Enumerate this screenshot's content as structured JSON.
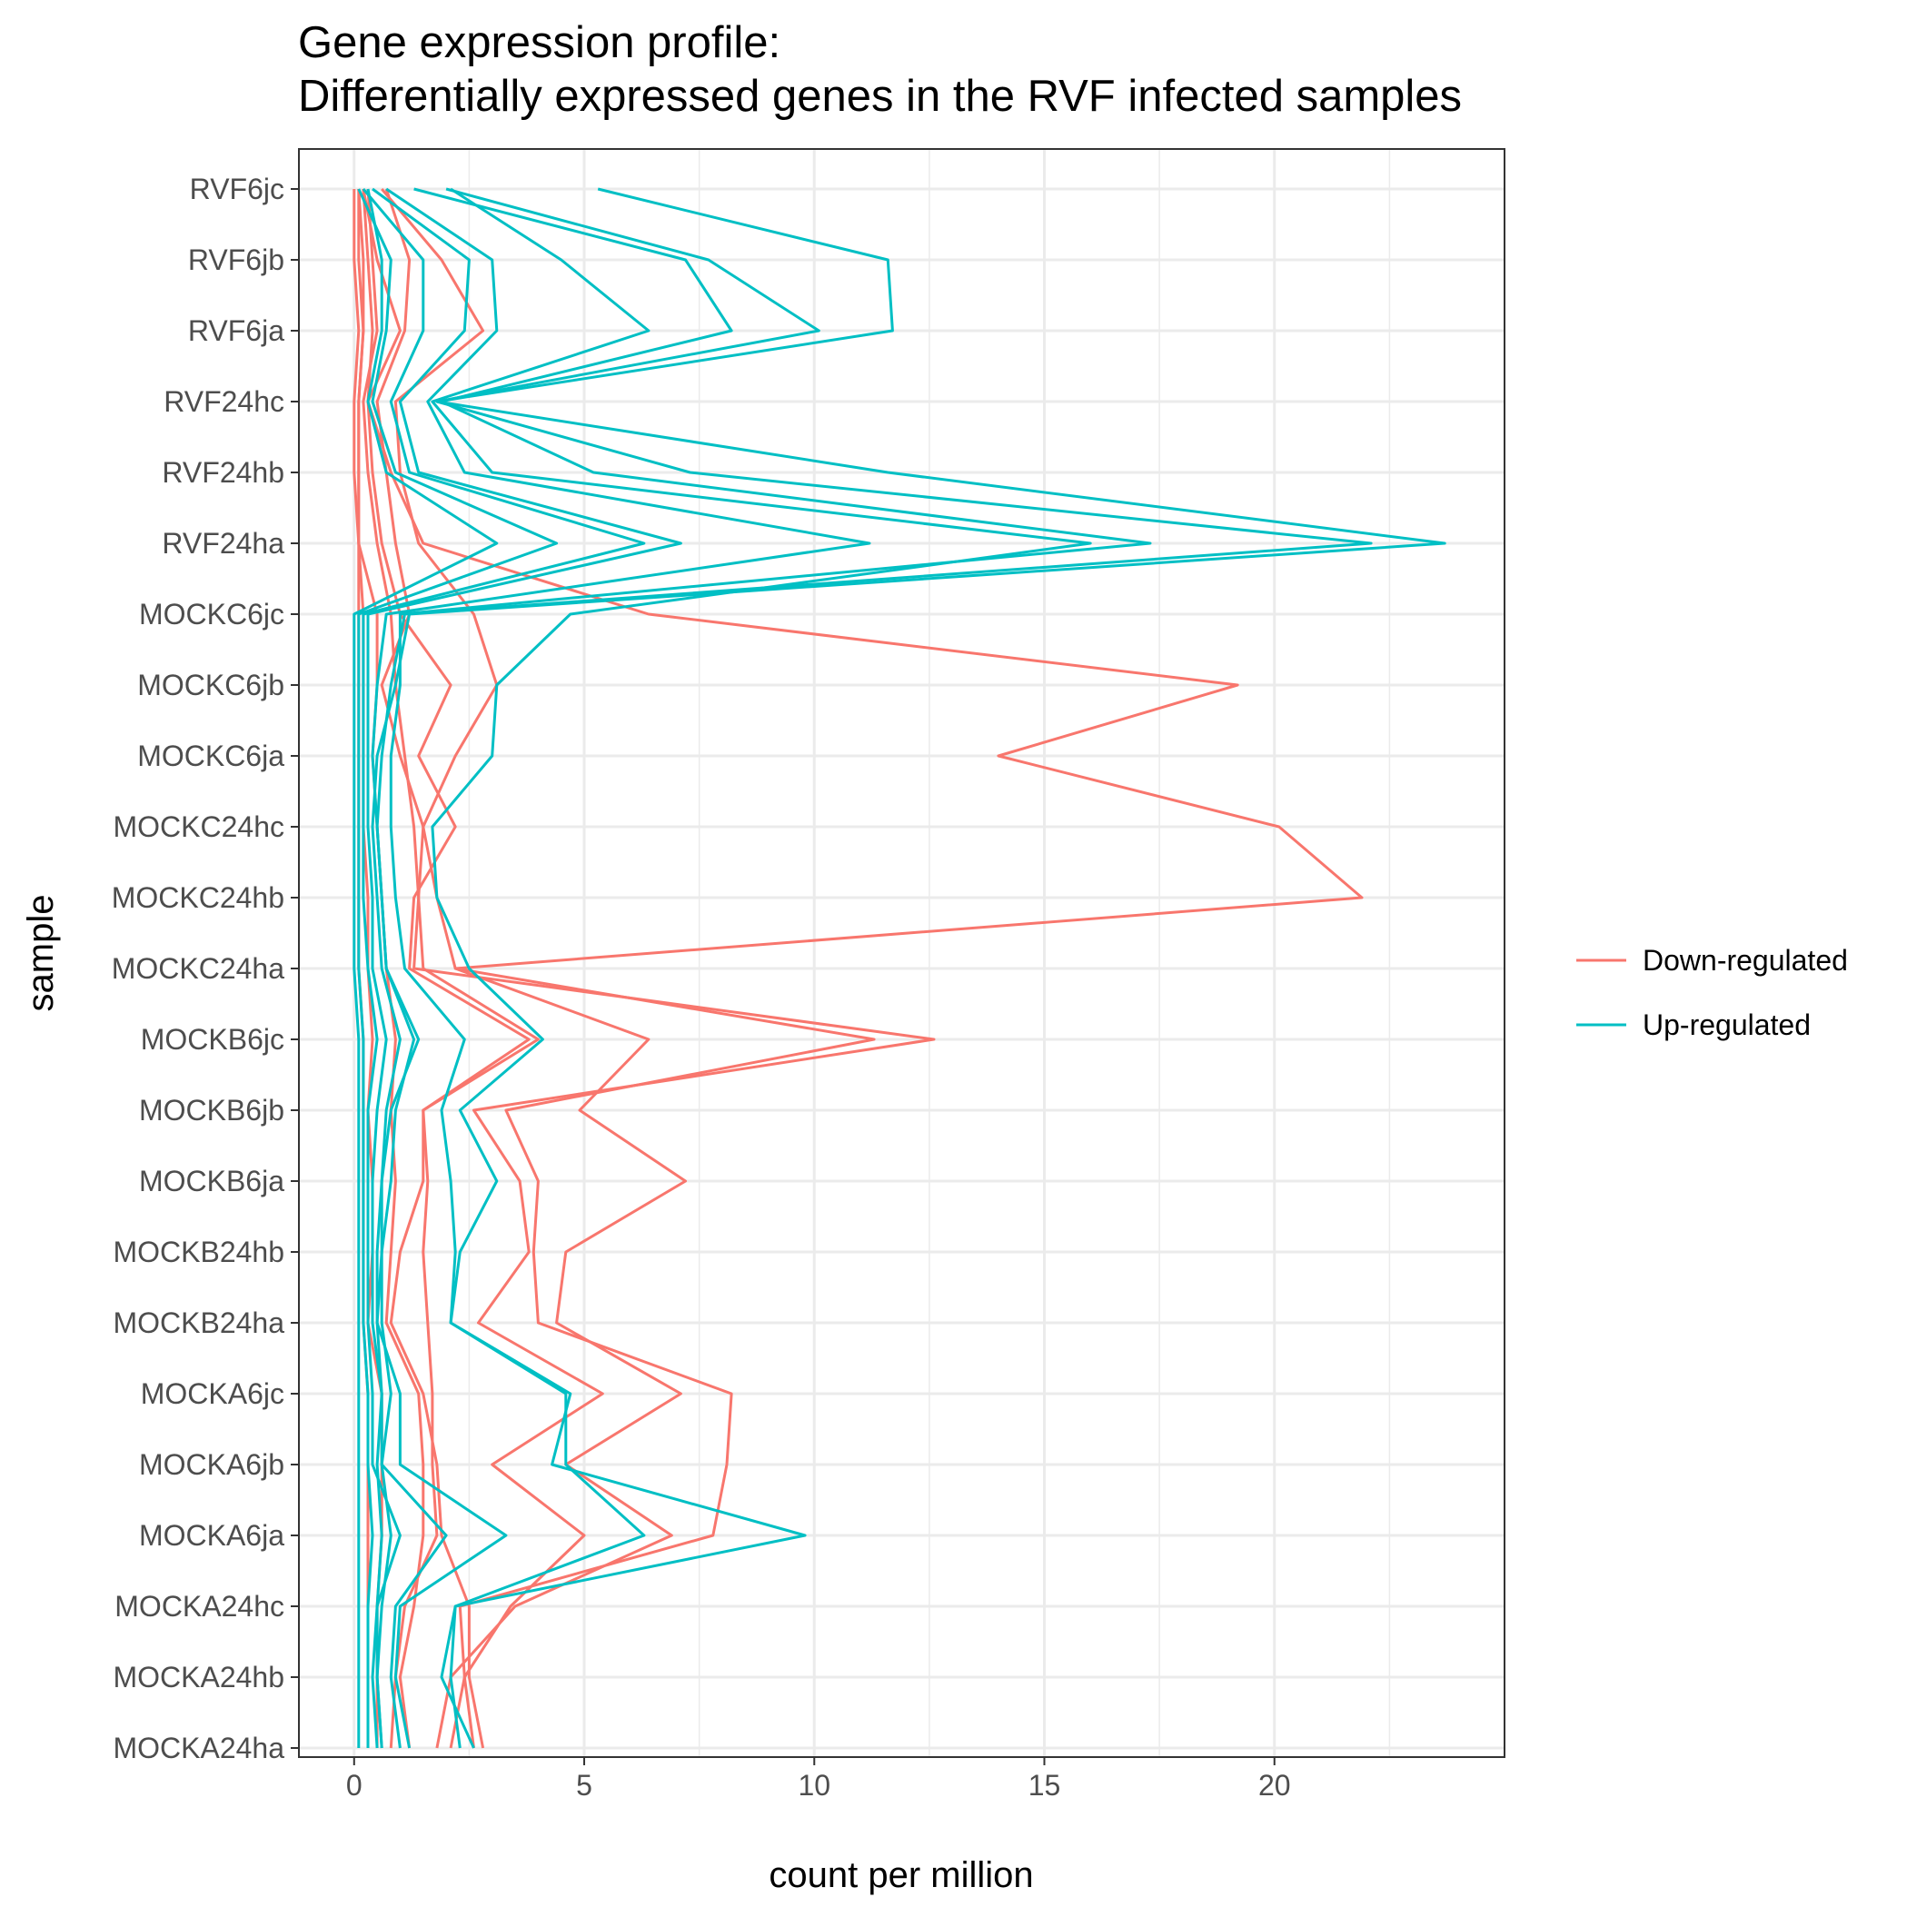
{
  "chart_data": {
    "type": "line",
    "title_lines": [
      "Gene expression profile:",
      "Differentially expressed genes in the RVF infected samples"
    ],
    "xlabel": "count per million",
    "ylabel": "sample",
    "xlim": [
      -1.2,
      25.0
    ],
    "x_ticks": [
      0,
      5,
      10,
      15,
      20
    ],
    "grid": true,
    "legend_position": "right",
    "categories": [
      "RVF6jc",
      "RVF6jb",
      "RVF6ja",
      "RVF24hc",
      "RVF24hb",
      "RVF24ha",
      "MOCKC6jc",
      "MOCKC6jb",
      "MOCKC6ja",
      "MOCKC24hc",
      "MOCKC24hb",
      "MOCKC24ha",
      "MOCKB6jc",
      "MOCKB6jb",
      "MOCKB6ja",
      "MOCKB24hb",
      "MOCKB24ha",
      "MOCKA6jc",
      "MOCKA6jb",
      "MOCKA6ja",
      "MOCKA24hc",
      "MOCKA24hb",
      "MOCKA24ha"
    ],
    "legend": [
      {
        "name": "Down-regulated",
        "color": "#F8766D"
      },
      {
        "name": "Up-regulated",
        "color": "#00BFC4"
      }
    ],
    "series": [
      {
        "group": "Down-regulated",
        "values": [
          0.7,
          1.2,
          1.1,
          0.5,
          0.7,
          0.9,
          1.2,
          0.6,
          1.0,
          1.5,
          1.4,
          1.5,
          4.0,
          1.5,
          1.5,
          1.0,
          0.8,
          1.5,
          1.8,
          1.9,
          2.5,
          2.5,
          2.8
        ]
      },
      {
        "group": "Down-regulated",
        "values": [
          0.6,
          1.9,
          2.8,
          0.9,
          1.0,
          1.4,
          2.6,
          3.1,
          2.2,
          1.5,
          1.8,
          2.2,
          6.4,
          4.9,
          7.2,
          4.6,
          4.4,
          7.1,
          4.6,
          6.9,
          3.5,
          2.1,
          1.8
        ]
      },
      {
        "group": "Down-regulated",
        "values": [
          0.2,
          0.5,
          1.0,
          0.3,
          0.8,
          1.5,
          6.4,
          19.2,
          14.0,
          20.1,
          21.9,
          2.2,
          11.3,
          3.3,
          4.0,
          3.9,
          4.0,
          8.2,
          8.1,
          7.8,
          2.3,
          2.4,
          2.6
        ]
      },
      {
        "group": "Down-regulated",
        "values": [
          0.1,
          0.2,
          0.2,
          0.1,
          0.1,
          0.1,
          0.5,
          0.5,
          0.4,
          0.5,
          0.6,
          0.7,
          0.9,
          0.8,
          0.9,
          0.8,
          0.7,
          1.4,
          1.5,
          1.5,
          1.3,
          1.0,
          1.2
        ]
      },
      {
        "group": "Down-regulated",
        "values": [
          0.3,
          0.4,
          0.5,
          0.2,
          0.3,
          0.5,
          0.8,
          0.9,
          1.1,
          1.3,
          1.4,
          1.3,
          12.6,
          2.6,
          3.6,
          3.8,
          2.7,
          5.4,
          3.0,
          5.0,
          3.4,
          2.4,
          2.1
        ]
      },
      {
        "group": "Down-regulated",
        "values": [
          0.1,
          0.1,
          0.2,
          0.1,
          0.1,
          0.1,
          0.2,
          0.2,
          0.2,
          0.2,
          0.3,
          0.3,
          0.4,
          0.3,
          0.4,
          0.4,
          0.3,
          0.6,
          0.6,
          0.6,
          0.5,
          0.5,
          0.5
        ]
      },
      {
        "group": "Down-regulated",
        "values": [
          0.0,
          0.0,
          0.1,
          0.0,
          0.0,
          0.1,
          0.1,
          0.1,
          0.1,
          0.1,
          0.1,
          0.1,
          0.2,
          0.2,
          0.2,
          0.2,
          0.2,
          0.3,
          0.3,
          0.3,
          0.3,
          0.3,
          0.3
        ]
      },
      {
        "group": "Down-regulated",
        "values": [
          0.2,
          0.3,
          0.4,
          0.3,
          0.4,
          0.6,
          1.0,
          2.1,
          1.4,
          2.2,
          1.3,
          1.2,
          3.8,
          1.5,
          1.6,
          1.5,
          1.6,
          1.7,
          1.7,
          1.8,
          1.1,
          0.9,
          0.8
        ]
      },
      {
        "group": "Up-regulated",
        "values": [
          5.3,
          11.6,
          11.7,
          1.8,
          11.6,
          23.7,
          1.2,
          0.9,
          0.5,
          0.4,
          0.5,
          0.6,
          1.0,
          0.7,
          0.6,
          0.5,
          0.5,
          0.6,
          0.5,
          0.6,
          0.5,
          0.4,
          0.5
        ]
      },
      {
        "group": "Up-regulated",
        "values": [
          2.0,
          7.7,
          10.1,
          1.8,
          7.3,
          22.1,
          1.1,
          0.8,
          0.6,
          0.5,
          0.6,
          0.7,
          1.3,
          0.9,
          0.8,
          0.6,
          0.6,
          0.8,
          0.6,
          0.8,
          0.6,
          0.5,
          0.6
        ]
      },
      {
        "group": "Up-regulated",
        "values": [
          1.3,
          7.2,
          8.2,
          1.9,
          5.2,
          17.3,
          1.0,
          1.0,
          0.8,
          0.8,
          0.9,
          1.1,
          2.4,
          1.9,
          2.1,
          2.2,
          2.1,
          4.7,
          4.3,
          9.8,
          2.2,
          2.1,
          2.3
        ]
      },
      {
        "group": "Up-regulated",
        "values": [
          2.1,
          4.5,
          6.4,
          1.7,
          3.0,
          16.0,
          4.7,
          3.1,
          3.0,
          1.7,
          1.8,
          2.5,
          4.1,
          2.3,
          3.1,
          2.3,
          2.1,
          4.6,
          4.6,
          6.3,
          2.2,
          1.9,
          2.6
        ]
      },
      {
        "group": "Up-regulated",
        "values": [
          0.7,
          3.0,
          3.1,
          1.6,
          2.4,
          11.2,
          0.7,
          0.5,
          0.4,
          0.5,
          0.6,
          0.7,
          1.4,
          0.8,
          0.6,
          0.6,
          0.5,
          1.0,
          1.0,
          3.3,
          1.0,
          0.9,
          1.2
        ]
      },
      {
        "group": "Up-regulated",
        "values": [
          0.4,
          2.5,
          2.4,
          1.0,
          1.4,
          7.1,
          0.3,
          0.3,
          0.3,
          0.3,
          0.4,
          0.4,
          0.7,
          0.5,
          0.4,
          0.4,
          0.4,
          0.6,
          0.6,
          2.0,
          0.9,
          0.8,
          1.0
        ]
      },
      {
        "group": "Up-regulated",
        "values": [
          0.2,
          1.5,
          1.5,
          0.8,
          1.2,
          6.3,
          0.2,
          0.2,
          0.2,
          0.2,
          0.2,
          0.3,
          0.5,
          0.3,
          0.3,
          0.3,
          0.3,
          0.4,
          0.4,
          1.0,
          0.5,
          0.5,
          0.6
        ]
      },
      {
        "group": "Up-regulated",
        "values": [
          0.1,
          0.8,
          0.7,
          0.4,
          0.9,
          4.4,
          0.1,
          0.1,
          0.1,
          0.1,
          0.1,
          0.1,
          0.2,
          0.2,
          0.2,
          0.2,
          0.2,
          0.3,
          0.3,
          0.4,
          0.3,
          0.3,
          0.3
        ]
      },
      {
        "group": "Up-regulated",
        "values": [
          0.3,
          0.6,
          0.6,
          0.3,
          0.7,
          3.1,
          0.0,
          0.0,
          0.0,
          0.0,
          0.0,
          0.0,
          0.1,
          0.1,
          0.1,
          0.1,
          0.1,
          0.1,
          0.1,
          0.1,
          0.1,
          0.1,
          0.1
        ]
      }
    ]
  }
}
